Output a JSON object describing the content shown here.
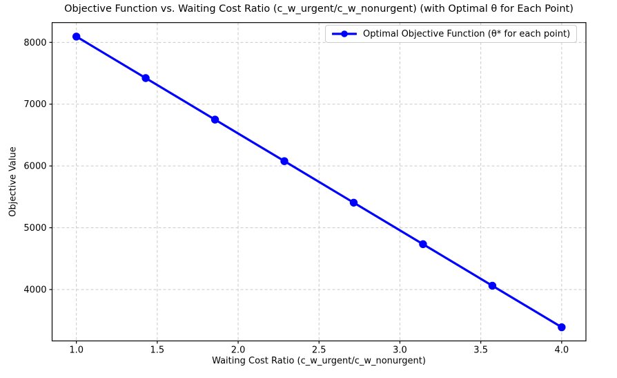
{
  "chart_data": {
    "type": "line",
    "title": "Objective Function vs. Waiting Cost Ratio (c_w_urgent/c_w_nonurgent) (with Optimal θ for Each Point)",
    "xlabel": "Waiting Cost Ratio (c_w_urgent/c_w_nonurgent)",
    "ylabel": "Objective Value",
    "series": [
      {
        "name": "Optimal Objective Function (θ* for each point)",
        "x": [
          1.0,
          1.4286,
          1.8571,
          2.2857,
          2.7143,
          3.1429,
          3.5714,
          4.0
        ],
        "y": [
          8094,
          7422,
          6750,
          6078,
          5406,
          4734,
          4062,
          3390
        ],
        "color": "#0000ff",
        "marker": "circle",
        "line_width": 3.2,
        "marker_radius": 5.7
      }
    ],
    "xlim": [
      0.85,
      4.15
    ],
    "ylim": [
      3169,
      8320
    ],
    "xticks": [
      1.0,
      1.5,
      2.0,
      2.5,
      3.0,
      3.5,
      4.0
    ],
    "yticks": [
      4000,
      5000,
      6000,
      7000,
      8000
    ],
    "grid": true,
    "grid_style": "dashed",
    "legend_position": "upper right",
    "colors": {
      "line": "#0000ff",
      "grid": "#c9c9c9",
      "spine": "#000000",
      "tick_text": "#000000",
      "background": "#ffffff"
    }
  }
}
